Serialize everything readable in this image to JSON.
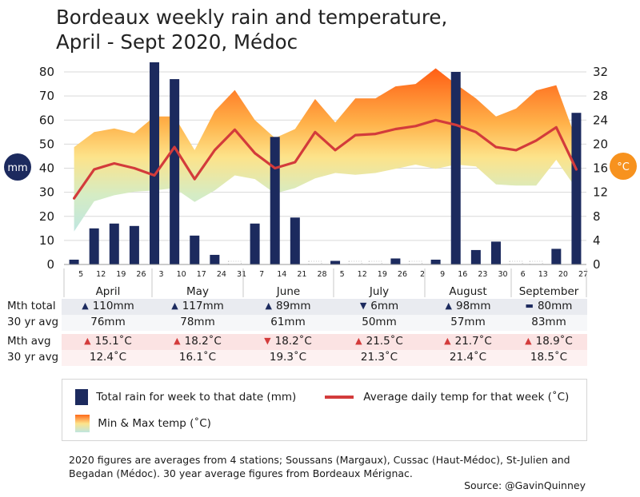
{
  "title_lines": [
    "Bordeaux weekly rain and temperature,",
    "April - Sept 2020, Médoc"
  ],
  "colors": {
    "bar": "#1c2a5e",
    "temp_line": "#d33b3b",
    "band_hot": "#ff6a1a",
    "band_cool": "#bfe6e0",
    "mm_badge": "#1c2a5e",
    "c_badge": "#f7921e",
    "stat_row_rain": "#e9ebf0",
    "stat_row_temp": "#fbe3e3"
  },
  "chart_data": {
    "type": "bar",
    "left_axis": {
      "badge": "mm",
      "ticks": [
        0,
        10,
        20,
        30,
        40,
        50,
        60,
        70,
        80
      ],
      "ylim": [
        0,
        80
      ]
    },
    "right_axis": {
      "badge": "°C",
      "ticks": [
        0,
        4,
        8,
        12,
        16,
        20,
        24,
        28,
        32
      ],
      "ylim": [
        0,
        32
      ]
    },
    "week_labels": [
      "5",
      "12",
      "19",
      "26",
      "3",
      "10",
      "17",
      "24",
      "31",
      "7",
      "14",
      "21",
      "28",
      "5",
      "12",
      "19",
      "26",
      "2",
      "9",
      "16",
      "23",
      "30",
      "6",
      "13",
      "20",
      "27"
    ],
    "month_labels": [
      "April",
      "May",
      "June",
      "July",
      "August",
      "September"
    ],
    "series": [
      {
        "name": "Total rain for week to that date (mm)",
        "type": "bar",
        "axis": "left",
        "values": [
          2,
          15,
          17,
          16,
          84,
          77,
          12,
          4,
          0,
          17,
          53,
          19.5,
          0,
          1.5,
          0,
          0,
          2.5,
          0,
          2,
          80,
          6,
          9.5,
          0,
          0,
          6.5,
          63
        ]
      },
      {
        "name": "Average daily temp for that week (°C)",
        "type": "line",
        "axis": "right",
        "values": [
          11,
          15.8,
          16.8,
          16,
          14.8,
          19.5,
          14.2,
          19,
          22.4,
          18.5,
          16,
          17,
          22,
          19,
          21.5,
          21.7,
          22.5,
          23,
          24,
          23.2,
          22,
          19.5,
          19,
          20.6,
          22.8,
          15.8
        ]
      },
      {
        "name": "Min & Max temp (°C)",
        "type": "area",
        "axis": "right",
        "max": [
          19.5,
          22,
          22.6,
          21.8,
          24.6,
          24.6,
          19,
          25.5,
          29,
          24,
          21,
          22.5,
          27.5,
          23.6,
          27.6,
          27.6,
          29.6,
          30,
          32.6,
          30,
          27.6,
          24.6,
          25.9,
          28.9,
          29.8,
          20.7
        ],
        "min": [
          5.5,
          10.5,
          11.5,
          12.1,
          12.3,
          12.7,
          10.4,
          12.3,
          14.8,
          14.2,
          11.8,
          12.7,
          14.3,
          15.2,
          14.9,
          15.2,
          15.9,
          16.6,
          15.9,
          16.6,
          16.3,
          13.3,
          13.1,
          13.1,
          17.4,
          12.6
        ]
      }
    ],
    "grid": true
  },
  "stats": {
    "months": [
      "April",
      "May",
      "June",
      "July",
      "August",
      "September"
    ],
    "rows": [
      {
        "label": "Mth total",
        "kind": "rain",
        "cells": [
          {
            "ind": "▲",
            "cls": "up",
            "text": "110mm"
          },
          {
            "ind": "▲",
            "cls": "up",
            "text": "117mm"
          },
          {
            "ind": "▲",
            "cls": "up",
            "text": "89mm"
          },
          {
            "ind": "▼",
            "cls": "down",
            "text": "6mm"
          },
          {
            "ind": "▲",
            "cls": "up",
            "text": "98mm"
          },
          {
            "ind": "▬",
            "cls": "flat",
            "text": "80mm"
          }
        ]
      },
      {
        "label": "30 yr avg",
        "kind": "rainavg",
        "cells": [
          {
            "ind": "",
            "text": "76mm"
          },
          {
            "ind": "",
            "text": "78mm"
          },
          {
            "ind": "",
            "text": "61mm"
          },
          {
            "ind": "",
            "text": "50mm"
          },
          {
            "ind": "",
            "text": "57mm"
          },
          {
            "ind": "",
            "text": "83mm"
          }
        ]
      },
      {
        "label": "Mth avg",
        "kind": "temp",
        "cells": [
          {
            "ind": "▲",
            "cls": "tup",
            "text": "15.1˚C"
          },
          {
            "ind": "▲",
            "cls": "tup",
            "text": "18.2˚C"
          },
          {
            "ind": "▼",
            "cls": "tdown",
            "text": "18.2˚C"
          },
          {
            "ind": "▲",
            "cls": "tup",
            "text": "21.5˚C"
          },
          {
            "ind": "▲",
            "cls": "tup",
            "text": "21.7˚C"
          },
          {
            "ind": "▲",
            "cls": "tup",
            "text": "18.9˚C"
          }
        ]
      },
      {
        "label": "30 yr avg",
        "kind": "tempavg",
        "cells": [
          {
            "ind": "",
            "text": "12.4˚C"
          },
          {
            "ind": "",
            "text": "16.1˚C"
          },
          {
            "ind": "",
            "text": "19.3˚C"
          },
          {
            "ind": "",
            "text": "21.3˚C"
          },
          {
            "ind": "",
            "text": "21.4˚C"
          },
          {
            "ind": "",
            "text": "18.5˚C"
          }
        ]
      }
    ]
  },
  "legend": {
    "rain": "Total rain for week to that date (mm)",
    "avg_temp": "Average daily temp for that week (˚C)",
    "minmax": "Min & Max temp (˚C)"
  },
  "note": "2020 figures are averages from 4 stations; Soussans (Margaux), Cussac (Haut-Médoc), St-Julien and Begadan (Médoc). 30 year average figures from Bordeaux Mérignac.",
  "source": "Source: @GavinQuinney"
}
